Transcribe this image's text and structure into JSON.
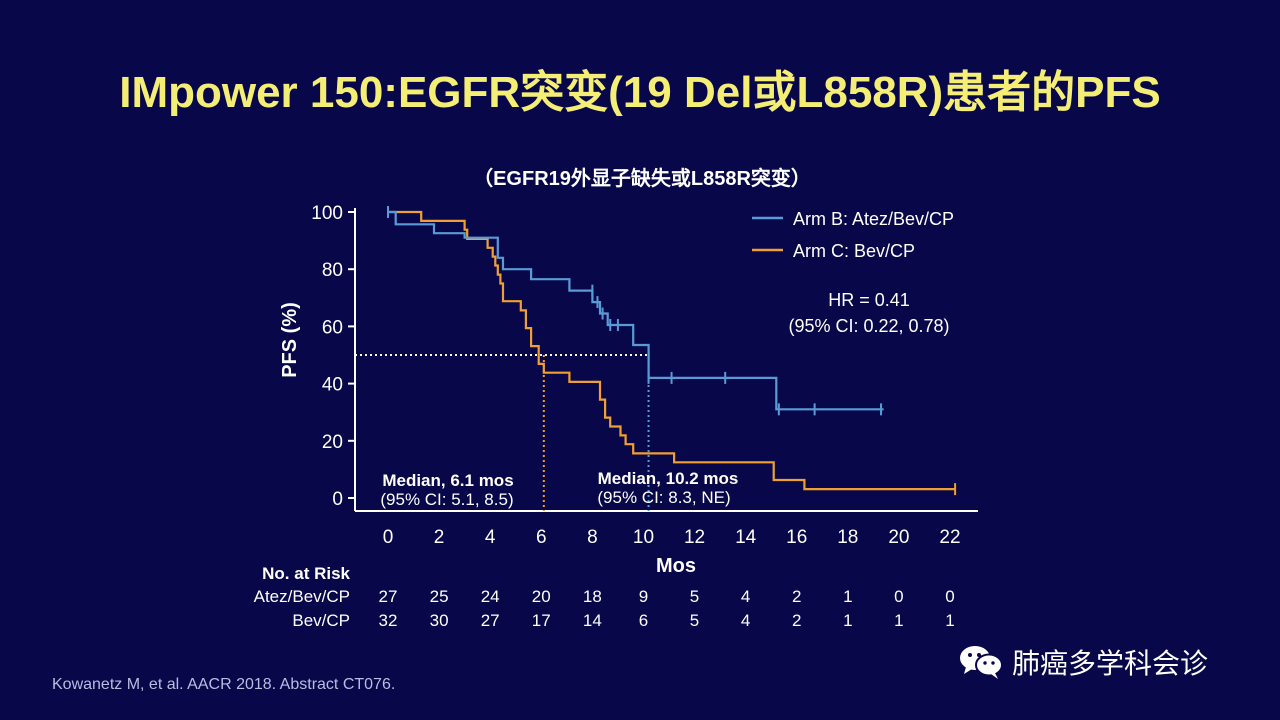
{
  "title": "IMpower 150:EGFR突变(19 Del或L858R)患者的PFS",
  "footnote": "Kowanetz M, et al. AACR 2018. Abstract CT076.",
  "watermark": {
    "text": "肺癌多学科会诊",
    "icon": "wechat-icon"
  },
  "colors": {
    "background": "#07074a",
    "title": "#f4ee74",
    "arm_b": "#5b9bd5",
    "arm_c": "#f0a030",
    "axis": "#ffffff"
  },
  "chart_data": {
    "type": "line",
    "subtitle": "（EGFR19外显子缺失或L858R突变）",
    "xlabel": "Mos",
    "ylabel": "PFS (%)",
    "xlim": [
      0,
      22
    ],
    "ylim": [
      0,
      100
    ],
    "xticks": [
      0,
      2,
      4,
      6,
      8,
      10,
      12,
      14,
      16,
      18,
      20,
      22
    ],
    "yticks": [
      0,
      20,
      40,
      60,
      80,
      100
    ],
    "grid": false,
    "legend_position": "top-right",
    "series": [
      {
        "name": "Arm  B: Atez/Bev/CP",
        "color": "#5b9bd5",
        "x": [
          0,
          0.3,
          0.3,
          1.8,
          1.8,
          3,
          3,
          4.3,
          4.3,
          4.5,
          4.5,
          5.6,
          5.6,
          7.1,
          7.1,
          8,
          8,
          8.3,
          8.3,
          8.6,
          8.6,
          9.6,
          9.6,
          10.2,
          10.2,
          15.2,
          15.2,
          19.4
        ],
        "y": [
          100,
          100,
          95.7,
          95.7,
          92.6,
          92.6,
          91,
          91,
          84,
          84,
          80,
          80,
          76.5,
          76.5,
          72.5,
          72.5,
          68.5,
          68.5,
          64.5,
          64.5,
          60.5,
          60.5,
          53.5,
          53.5,
          42,
          42,
          31,
          31
        ],
        "censor_x": [
          0,
          8,
          8.2,
          8.4,
          8.7,
          9,
          10.2,
          11.1,
          13.2,
          15.3,
          16.7,
          19.3
        ],
        "censor_y": [
          100,
          72.5,
          68.5,
          64.5,
          60.5,
          60.5,
          42,
          42,
          42,
          31,
          31,
          31
        ],
        "median": 10.2,
        "median_label": "Median, 10.2 mos",
        "ci_label": "(95% CI: 8.3, NE)"
      },
      {
        "name": "Arm  C: Bev/CP",
        "color": "#f0a030",
        "x": [
          0,
          1.3,
          1.3,
          3,
          3,
          3.1,
          3.1,
          3.9,
          3.9,
          4.1,
          4.1,
          4.2,
          4.2,
          4.3,
          4.3,
          4.4,
          4.4,
          4.5,
          4.5,
          5.2,
          5.2,
          5.4,
          5.4,
          5.6,
          5.6,
          5.9,
          5.9,
          6.1,
          6.1,
          7.1,
          7.1,
          8.3,
          8.3,
          8.5,
          8.5,
          8.7,
          8.7,
          9.1,
          9.1,
          9.3,
          9.3,
          9.6,
          9.6,
          11.2,
          11.2,
          15.1,
          15.1,
          16.3,
          16.3,
          22.2
        ],
        "y": [
          100,
          100,
          96.9,
          96.9,
          93.8,
          93.8,
          90.6,
          90.6,
          87.5,
          87.5,
          84.4,
          84.4,
          81.3,
          81.3,
          78.1,
          78.1,
          75,
          75,
          68.8,
          68.8,
          65.6,
          65.6,
          59.4,
          59.4,
          53.1,
          53.1,
          46.9,
          46.9,
          43.8,
          43.8,
          40.6,
          40.6,
          34.4,
          34.4,
          28.1,
          28.1,
          25,
          25,
          21.9,
          21.9,
          18.8,
          18.8,
          15.6,
          15.6,
          12.5,
          12.5,
          6.3,
          6.3,
          3.1,
          3.1
        ],
        "censor_x": [
          22.2
        ],
        "censor_y": [
          3.1
        ],
        "median": 6.1,
        "median_label": "Median, 6.1 mos",
        "ci_label": "(95% CI: 5.1, 8.5)"
      }
    ],
    "annotation": {
      "line1": "HR   = 0.41",
      "line2": "(95% CI: 0.22, 0.78)"
    },
    "risk_table": {
      "header": "No. at Risk",
      "times": [
        0,
        2,
        4,
        6,
        8,
        10,
        12,
        14,
        16,
        18,
        20,
        22
      ],
      "rows": [
        {
          "label": "Atez/Bev/CP",
          "values": [
            27,
            25,
            24,
            20,
            18,
            9,
            5,
            4,
            2,
            1,
            0,
            0
          ]
        },
        {
          "label": "Bev/CP",
          "values": [
            32,
            30,
            27,
            17,
            14,
            6,
            5,
            4,
            2,
            1,
            1,
            1
          ]
        }
      ]
    }
  }
}
